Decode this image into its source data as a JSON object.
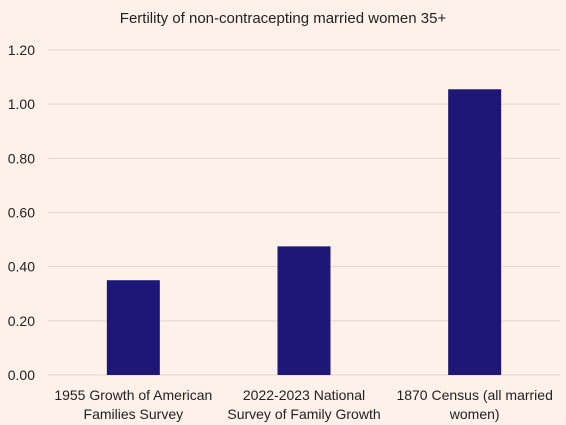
{
  "chart_data": {
    "type": "bar",
    "title": "Fertility of non-contracepting married women 35+",
    "xlabel": "",
    "ylabel": "",
    "categories": [
      [
        "1955 Growth of American",
        "Families Survey"
      ],
      [
        "2022-2023 National",
        "Survey of Family Growth"
      ],
      [
        "1870 Census (all married",
        "women)"
      ]
    ],
    "values": [
      0.35,
      0.475,
      1.055
    ],
    "ylim": [
      0,
      1.2
    ],
    "yticks": [
      "0.00",
      "0.20",
      "0.40",
      "0.60",
      "0.80",
      "1.00",
      "1.20"
    ],
    "grid": true,
    "legend": "none",
    "bar_color": "#1f1777",
    "grid_color": "#e2d6cf",
    "background_color": "#fdf1ea"
  }
}
